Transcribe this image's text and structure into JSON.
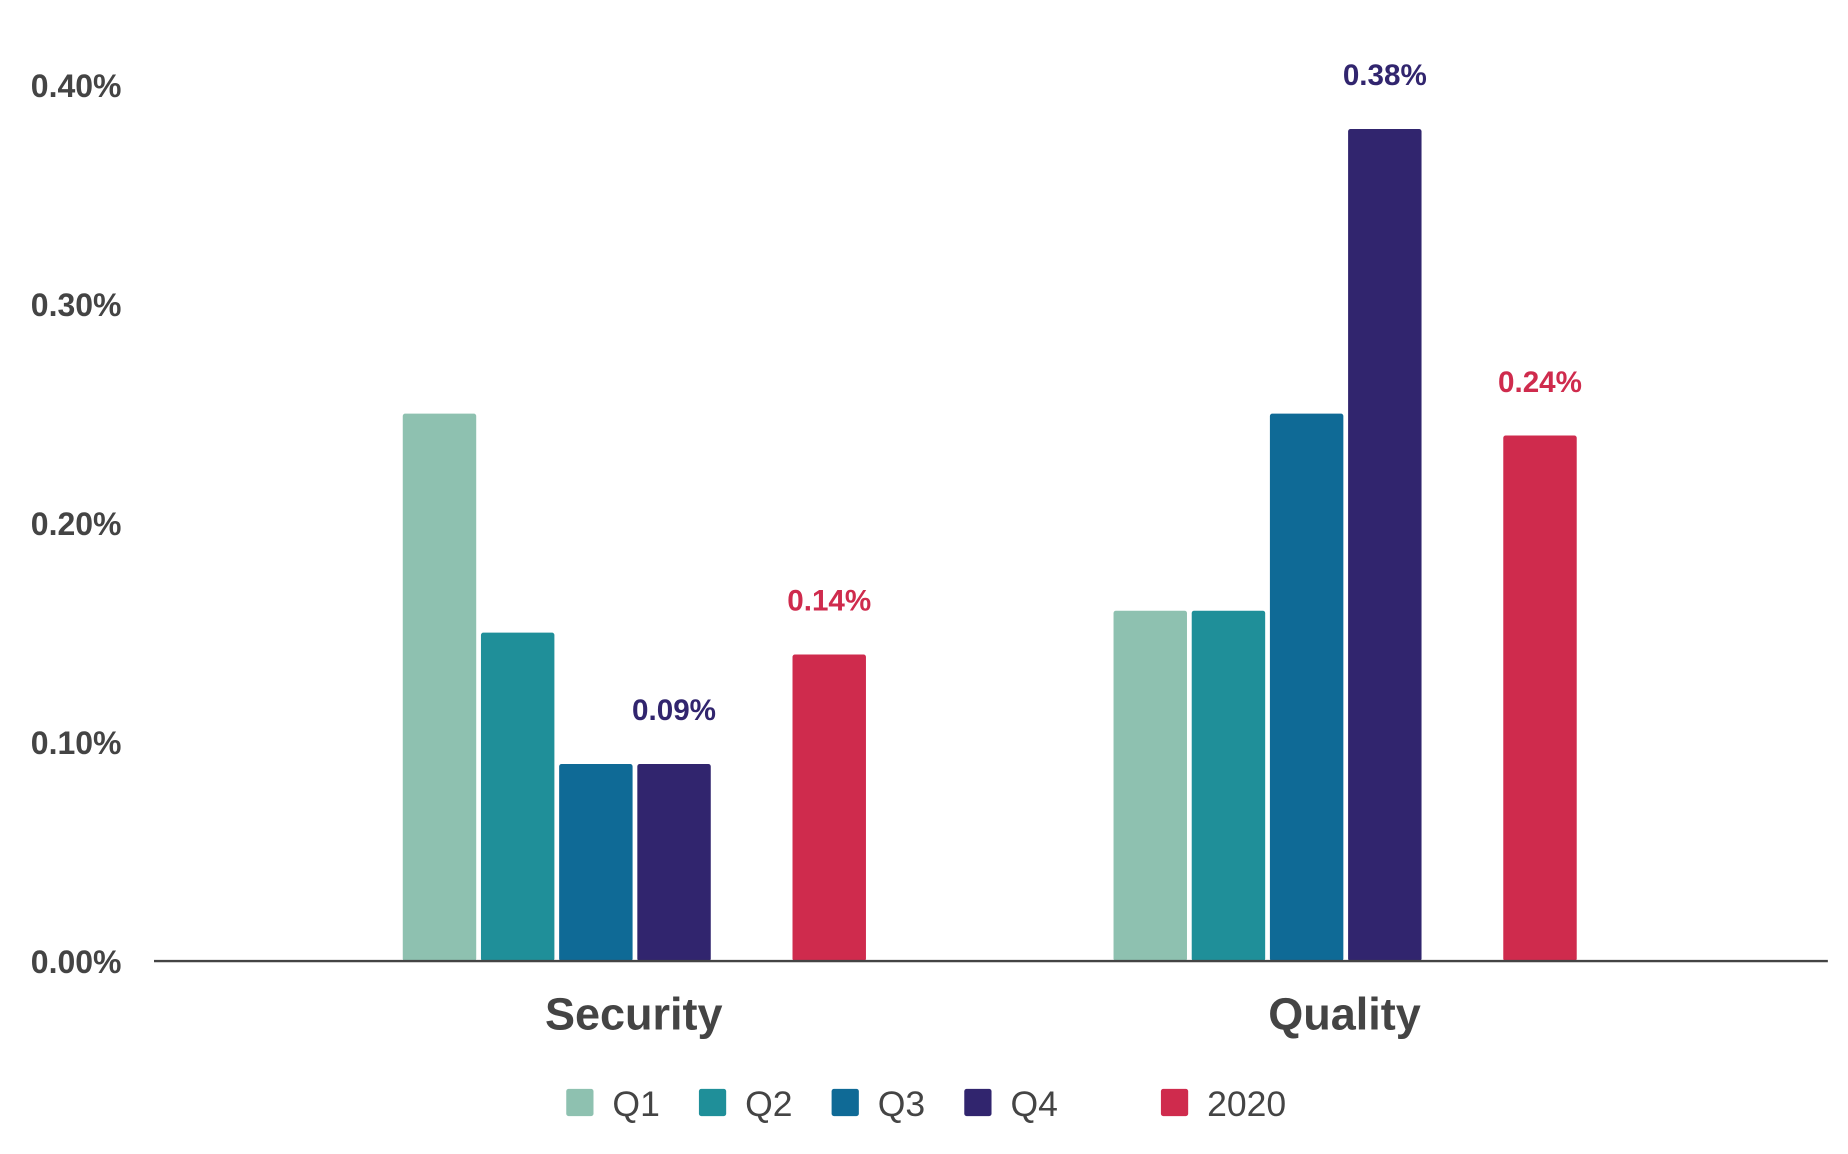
{
  "chart_data": {
    "type": "bar",
    "categories": [
      "Security",
      "Quality"
    ],
    "series": [
      {
        "name": "Q1",
        "values": [
          0.25,
          0.16
        ],
        "color": "#8ec1b0"
      },
      {
        "name": "Q2",
        "values": [
          0.15,
          0.16
        ],
        "color": "#1f8f99"
      },
      {
        "name": "Q3",
        "values": [
          0.09,
          0.25
        ],
        "color": "#0f6a96"
      },
      {
        "name": "Q4",
        "values": [
          0.09,
          0.38
        ],
        "color": "#31256e"
      },
      {
        "name": "2020",
        "values": [
          0.14,
          0.24
        ],
        "color": "#cf2b4d"
      }
    ],
    "data_labels": [
      {
        "series": "Q4",
        "category": "Security",
        "text": "0.09%"
      },
      {
        "series": "2020",
        "category": "Security",
        "text": "0.14%"
      },
      {
        "series": "Q4",
        "category": "Quality",
        "text": "0.38%"
      },
      {
        "series": "2020",
        "category": "Quality",
        "text": "0.24%"
      }
    ],
    "yticks": [
      "0.00%",
      "0.10%",
      "0.20%",
      "0.30%",
      "0.40%"
    ],
    "ylim": [
      0,
      0.4
    ],
    "yunit": "%",
    "grid": false,
    "legend": "bottom-center"
  }
}
